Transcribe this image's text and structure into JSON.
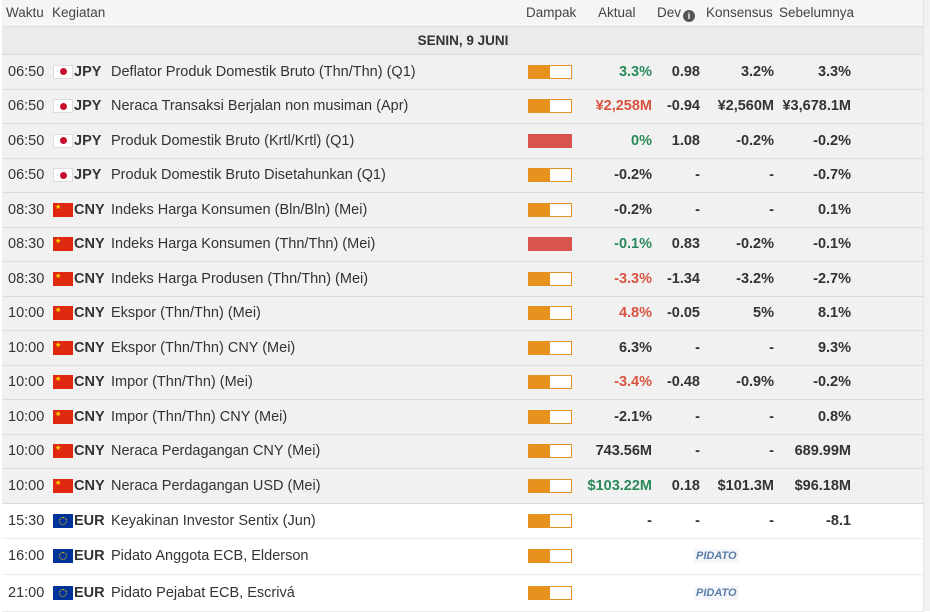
{
  "header": {
    "time": "Waktu",
    "activity": "Kegiatan",
    "impact": "Dampak",
    "actual": "Aktual",
    "dev": "Dev",
    "consensus": "Konsensus",
    "previous": "Sebelumnya",
    "info_icon": "info-icon"
  },
  "day_label": "SENIN, 9 JUNI",
  "colors": {
    "positive": "#2a8a5a",
    "negative": "#d9533f",
    "impact": "#e8921e",
    "high_impact": "#d9534f"
  },
  "rows": [
    {
      "time": "06:50",
      "currency": "JPY",
      "flag": "jp",
      "event": "Deflator Produk Domestik Bruto (Thn/Thn) (Q1)",
      "impact": 0.5,
      "actual": "3.3%",
      "actual_tone": "green",
      "dev": "0.98",
      "consensus": "3.2%",
      "previous": "3.3%",
      "status": "past"
    },
    {
      "time": "06:50",
      "currency": "JPY",
      "flag": "jp",
      "event": "Neraca Transaksi Berjalan non musiman (Apr)",
      "impact": 0.5,
      "actual": "¥2,258M",
      "actual_tone": "red",
      "dev": "-0.94",
      "consensus": "¥2,560M",
      "previous": "¥3,678.1M",
      "status": "past"
    },
    {
      "time": "06:50",
      "currency": "JPY",
      "flag": "jp",
      "event": "Produk Domestik Bruto (Krtl/Krtl) (Q1)",
      "impact": 1,
      "actual": "0%",
      "actual_tone": "green",
      "dev": "1.08",
      "consensus": "-0.2%",
      "previous": "-0.2%",
      "status": "past"
    },
    {
      "time": "06:50",
      "currency": "JPY",
      "flag": "jp",
      "event": "Produk Domestik Bruto Disetahunkan (Q1)",
      "impact": 0.5,
      "actual": "-0.2%",
      "actual_tone": "neutral",
      "dev": "-",
      "consensus": "-",
      "previous": "-0.7%",
      "status": "past"
    },
    {
      "time": "08:30",
      "currency": "CNY",
      "flag": "cn",
      "event": "Indeks Harga Konsumen (Bln/Bln) (Mei)",
      "impact": 0.5,
      "actual": "-0.2%",
      "actual_tone": "neutral",
      "dev": "-",
      "consensus": "-",
      "previous": "0.1%",
      "status": "past"
    },
    {
      "time": "08:30",
      "currency": "CNY",
      "flag": "cn",
      "event": "Indeks Harga Konsumen (Thn/Thn) (Mei)",
      "impact": 1,
      "actual": "-0.1%",
      "actual_tone": "green",
      "dev": "0.83",
      "consensus": "-0.2%",
      "previous": "-0.1%",
      "status": "past"
    },
    {
      "time": "08:30",
      "currency": "CNY",
      "flag": "cn",
      "event": "Indeks Harga Produsen (Thn/Thn) (Mei)",
      "impact": 0.5,
      "actual": "-3.3%",
      "actual_tone": "red",
      "dev": "-1.34",
      "consensus": "-3.2%",
      "previous": "-2.7%",
      "status": "past"
    },
    {
      "time": "10:00",
      "currency": "CNY",
      "flag": "cn",
      "event": "Ekspor (Thn/Thn) (Mei)",
      "impact": 0.5,
      "actual": "4.8%",
      "actual_tone": "red",
      "dev": "-0.05",
      "consensus": "5%",
      "previous": "8.1%",
      "status": "past"
    },
    {
      "time": "10:00",
      "currency": "CNY",
      "flag": "cn",
      "event": "Ekspor (Thn/Thn) CNY (Mei)",
      "impact": 0.5,
      "actual": "6.3%",
      "actual_tone": "neutral",
      "dev": "-",
      "consensus": "-",
      "previous": "9.3%",
      "status": "past"
    },
    {
      "time": "10:00",
      "currency": "CNY",
      "flag": "cn",
      "event": "Impor (Thn/Thn) (Mei)",
      "impact": 0.5,
      "actual": "-3.4%",
      "actual_tone": "red",
      "dev": "-0.48",
      "consensus": "-0.9%",
      "previous": "-0.2%",
      "status": "past"
    },
    {
      "time": "10:00",
      "currency": "CNY",
      "flag": "cn",
      "event": "Impor (Thn/Thn) CNY (Mei)",
      "impact": 0.5,
      "actual": "-2.1%",
      "actual_tone": "neutral",
      "dev": "-",
      "consensus": "-",
      "previous": "0.8%",
      "status": "past"
    },
    {
      "time": "10:00",
      "currency": "CNY",
      "flag": "cn",
      "event": "Neraca Perdagangan CNY (Mei)",
      "impact": 0.5,
      "actual": "743.56M",
      "actual_tone": "neutral",
      "dev": "-",
      "consensus": "-",
      "previous": "689.99M",
      "status": "past"
    },
    {
      "time": "10:00",
      "currency": "CNY",
      "flag": "cn",
      "event": "Neraca Perdagangan USD (Mei)",
      "impact": 0.5,
      "actual": "$103.22M",
      "actual_tone": "green",
      "dev": "0.18",
      "consensus": "$101.3M",
      "previous": "$96.18M",
      "status": "past"
    },
    {
      "time": "15:30",
      "currency": "EUR",
      "flag": "eu",
      "event": "Keyakinan Investor Sentix (Jun)",
      "impact": 0.5,
      "actual": "-",
      "actual_tone": "neutral",
      "dev": "-",
      "consensus": "-",
      "previous": "-8.1",
      "status": "future"
    },
    {
      "time": "16:00",
      "currency": "EUR",
      "flag": "eu",
      "event": "Pidato Anggota ECB, Elderson",
      "impact": 0.5,
      "speech": "PIDATO",
      "status": "future"
    },
    {
      "time": "21:00",
      "currency": "EUR",
      "flag": "eu",
      "event": "Pidato Pejabat ECB, Escrivá",
      "impact": 0.5,
      "speech": "PIDATO",
      "status": "future"
    }
  ]
}
